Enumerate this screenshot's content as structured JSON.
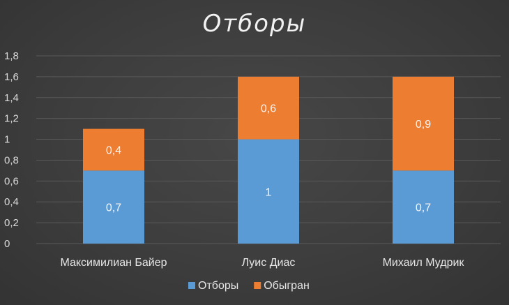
{
  "chart_data": {
    "type": "bar",
    "stacked": true,
    "title": "Отборы",
    "categories": [
      "Максимилиан Байер",
      "Луис Диас",
      "Михаил Мудрик"
    ],
    "series": [
      {
        "name": "Отборы",
        "color": "#5b9bd5",
        "values": [
          0.7,
          1,
          0.7
        ],
        "labels": [
          "0,7",
          "1",
          "0,7"
        ]
      },
      {
        "name": "Обыгран",
        "color": "#ed7d31",
        "values": [
          0.4,
          0.6,
          0.9
        ],
        "labels": [
          "0,4",
          "0,6",
          "0,9"
        ]
      }
    ],
    "ylim": [
      0,
      1.8
    ],
    "yticks": [
      0,
      0.2,
      0.4,
      0.6,
      0.8,
      1,
      1.2,
      1.4,
      1.6,
      1.8
    ],
    "ytick_labels": [
      "0",
      "0,2",
      "0,4",
      "0,6",
      "0,8",
      "1",
      "1,2",
      "1,4",
      "1,6",
      "1,8"
    ],
    "grid": true,
    "legend": "bottom"
  }
}
